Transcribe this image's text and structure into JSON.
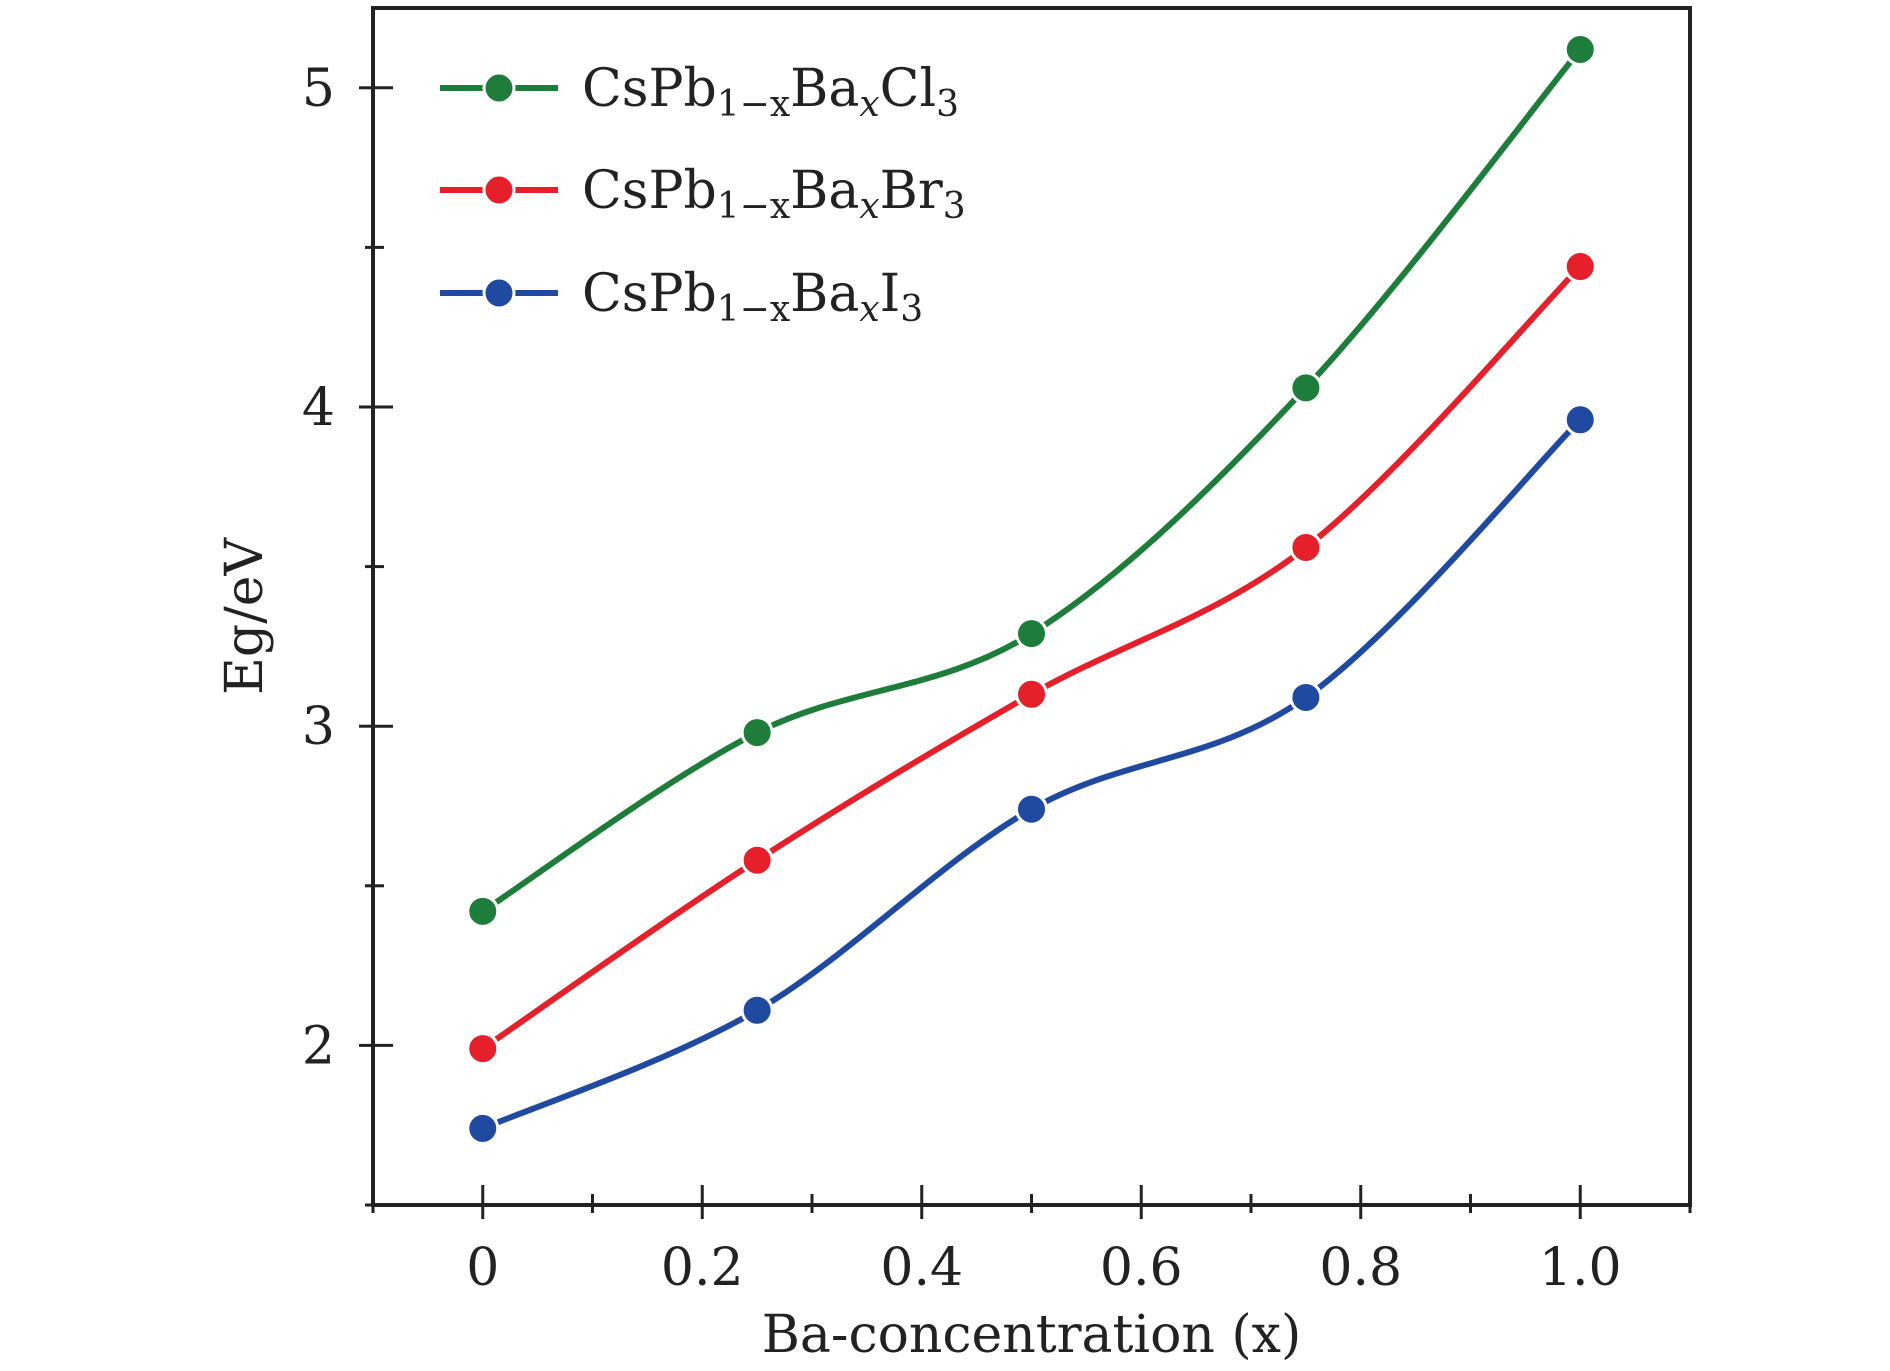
{
  "chart_data": {
    "type": "line",
    "xlabel": "Ba-concentration (x)",
    "ylabel": "Eg/eV",
    "xlim": [
      -0.1,
      1.1
    ],
    "ylim": [
      1.5,
      5.25
    ],
    "x_ticks": [
      0,
      0.2,
      0.4,
      0.6,
      0.8,
      1.0
    ],
    "x_tick_labels": [
      "0",
      "0.2",
      "0.4",
      "0.6",
      "0.8",
      "1.0"
    ],
    "y_ticks": [
      2,
      3,
      4,
      5
    ],
    "y_tick_labels": [
      "2",
      "3",
      "4",
      "5"
    ],
    "grid": false,
    "legend_position": "top-left",
    "x": [
      0,
      0.25,
      0.5,
      0.75,
      1.0
    ],
    "series": [
      {
        "name": "CsPb1−xBaxCl3",
        "name_parts": [
          "CsPb",
          "1−x",
          "Ba",
          "x",
          "Cl",
          "3"
        ],
        "color": "#1e7d3a",
        "values": [
          2.42,
          2.98,
          3.29,
          4.06,
          5.12
        ]
      },
      {
        "name": "CsPb1−xBaxBr3",
        "name_parts": [
          "CsPb",
          "1−x",
          "Ba",
          "x",
          "Br",
          "3"
        ],
        "color": "#e5202a",
        "values": [
          1.99,
          2.58,
          3.1,
          3.56,
          4.44
        ]
      },
      {
        "name": "CsPb1−xBaxI3",
        "name_parts": [
          "CsPb",
          "1−x",
          "Ba",
          "x",
          "I",
          "3"
        ],
        "color": "#1f4aa0",
        "values": [
          1.74,
          2.11,
          2.74,
          3.09,
          3.96
        ]
      }
    ]
  }
}
